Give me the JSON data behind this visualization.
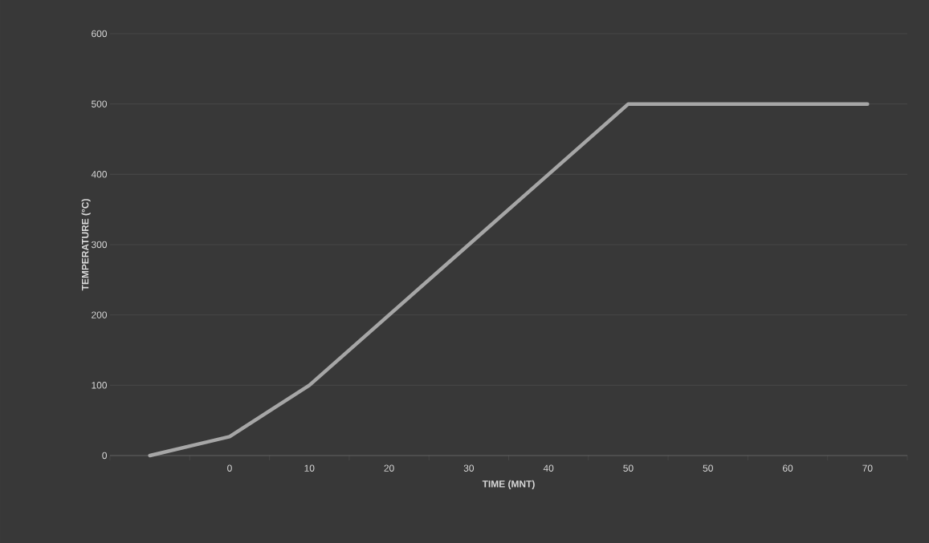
{
  "chart_data": {
    "type": "line",
    "xlabel": "TIME (MNT)",
    "ylabel": "TEMPERATURE (°C)",
    "categories": [
      null,
      "0",
      "10",
      "20",
      "30",
      "40",
      "50",
      "50",
      "60",
      "70"
    ],
    "series": [
      {
        "color": "#a6a6a6",
        "values": [
          0,
          27,
          100,
          200,
          300,
          400,
          500,
          500,
          500,
          500
        ]
      }
    ],
    "ylim": [
      0,
      600
    ],
    "yticks": [
      0,
      100,
      200,
      300,
      400,
      500,
      600
    ],
    "grid": "y",
    "marker": "none",
    "line_style": "solid"
  }
}
